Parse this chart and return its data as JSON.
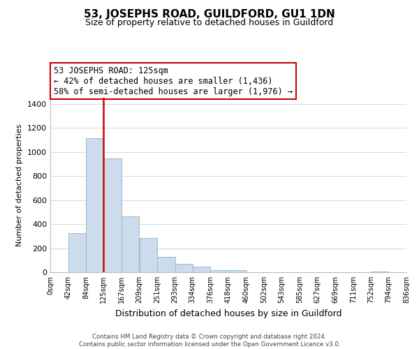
{
  "title": "53, JOSEPHS ROAD, GUILDFORD, GU1 1DN",
  "subtitle": "Size of property relative to detached houses in Guildford",
  "xlabel": "Distribution of detached houses by size in Guildford",
  "ylabel": "Number of detached properties",
  "bar_color": "#ccdcec",
  "bar_edge_color": "#99bbcc",
  "vline_x": 125,
  "vline_color": "#cc0000",
  "bin_edges": [
    0,
    42,
    84,
    125,
    167,
    209,
    251,
    293,
    334,
    376,
    418,
    460,
    502,
    543,
    585,
    627,
    669,
    711,
    752,
    794,
    836
  ],
  "bar_heights": [
    0,
    325,
    1115,
    945,
    465,
    285,
    125,
    70,
    45,
    18,
    20,
    0,
    0,
    0,
    0,
    0,
    0,
    0,
    5,
    0
  ],
  "xlim": [
    0,
    836
  ],
  "ylim": [
    0,
    1450
  ],
  "yticks": [
    0,
    200,
    400,
    600,
    800,
    1000,
    1200,
    1400
  ],
  "xtick_labels": [
    "0sqm",
    "42sqm",
    "84sqm",
    "125sqm",
    "167sqm",
    "209sqm",
    "251sqm",
    "293sqm",
    "334sqm",
    "376sqm",
    "418sqm",
    "460sqm",
    "502sqm",
    "543sqm",
    "585sqm",
    "627sqm",
    "669sqm",
    "711sqm",
    "752sqm",
    "794sqm",
    "836sqm"
  ],
  "annotation_title": "53 JOSEPHS ROAD: 125sqm",
  "annotation_line1": "← 42% of detached houses are smaller (1,436)",
  "annotation_line2": "58% of semi-detached houses are larger (1,976) →",
  "annotation_box_color": "#ffffff",
  "annotation_box_edge": "#cc0000",
  "footnote1": "Contains HM Land Registry data © Crown copyright and database right 2024.",
  "footnote2": "Contains public sector information licensed under the Open Government Licence v3.0.",
  "background_color": "#ffffff",
  "grid_color": "#ccd9e6"
}
